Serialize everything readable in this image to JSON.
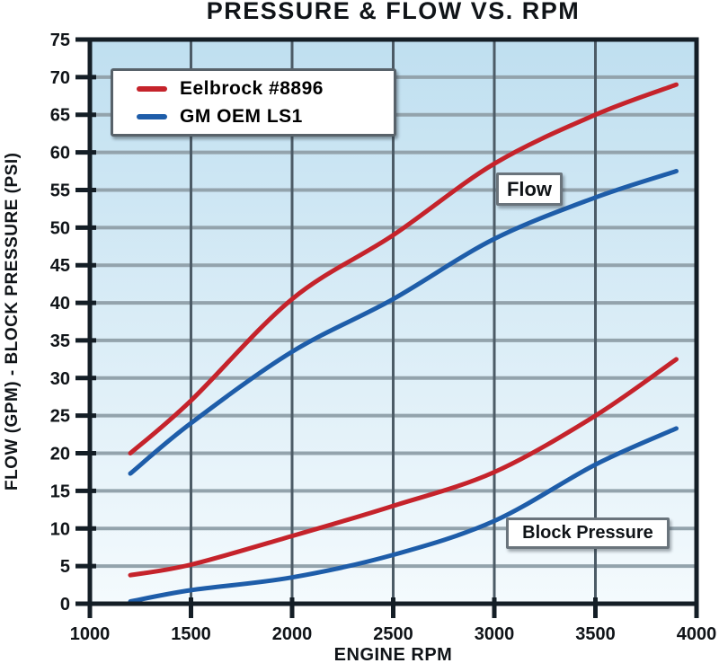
{
  "chart_data": {
    "type": "line",
    "title": "PRESSURE & FLOW VS. RPM",
    "xlabel": "ENGINE RPM",
    "ylabel": "FLOW (GPM) - BLOCK PRESSURE (PSI)",
    "xlim": [
      1000,
      4000
    ],
    "ylim": [
      0,
      75
    ],
    "x_ticks": [
      1000,
      1500,
      2000,
      2500,
      3000,
      3500,
      4000
    ],
    "y_ticks": [
      0,
      5,
      10,
      15,
      20,
      25,
      30,
      35,
      40,
      45,
      50,
      55,
      60,
      65,
      70,
      75
    ],
    "grid": true,
    "x": [
      1200,
      1500,
      2000,
      2500,
      3000,
      3500,
      3900
    ],
    "series": [
      {
        "name": "Eelbrock #8896",
        "curve": "Flow",
        "color": "#c5232b",
        "values": [
          20,
          27,
          40.5,
          49,
          58.5,
          65,
          69
        ]
      },
      {
        "name": "GM OEM LS1",
        "curve": "Flow",
        "color": "#1e5da9",
        "values": [
          17.3,
          24,
          33.5,
          40.5,
          48.5,
          54,
          57.5
        ]
      },
      {
        "name": "Eelbrock #8896",
        "curve": "Block Pressure",
        "color": "#c5232b",
        "values": [
          3.8,
          5.2,
          9,
          13,
          17.5,
          25,
          32.5
        ]
      },
      {
        "name": "GM OEM LS1",
        "curve": "Block Pressure",
        "color": "#1e5da9",
        "values": [
          0.3,
          1.8,
          3.5,
          6.5,
          11,
          18.5,
          23.3
        ]
      }
    ],
    "legend": {
      "position": "top-left",
      "items": [
        {
          "label": "Eelbrock #8896",
          "color": "#c5232b"
        },
        {
          "label": "GM OEM LS1",
          "color": "#1e5da9"
        }
      ]
    },
    "annotations": [
      {
        "text": "Flow"
      },
      {
        "text": "Block Pressure"
      }
    ],
    "colors": {
      "plot_bg_top": "#bfdff0",
      "plot_bg_bottom": "#f4fafd",
      "grid_horizontal": "#93a3ac",
      "grid_vertical": "#4c5b66",
      "axis_border": "#141e26",
      "text": "#101418"
    }
  }
}
